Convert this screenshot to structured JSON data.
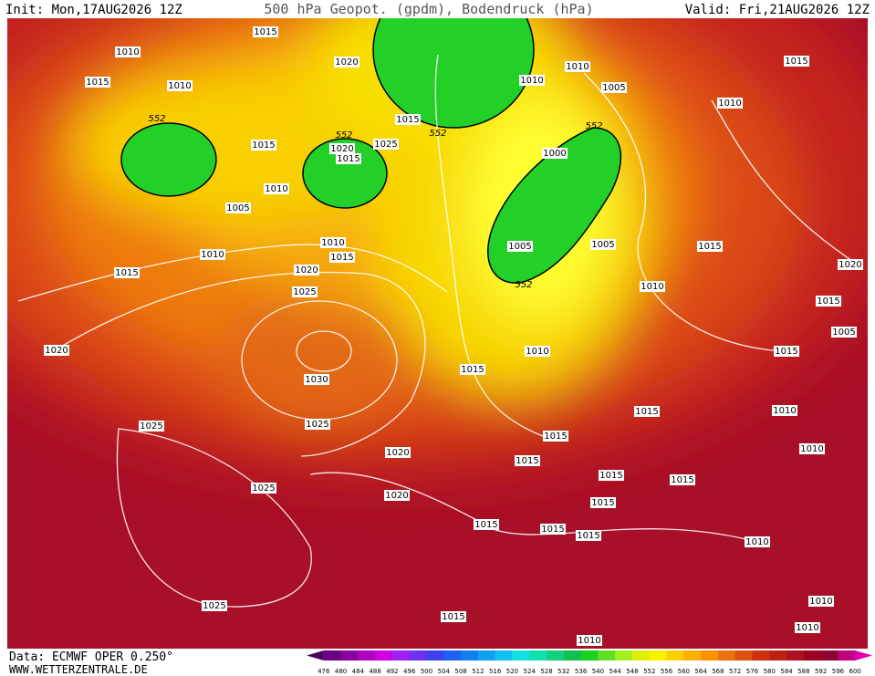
{
  "header": {
    "init": "Init: Mon,17AUG2026 12Z",
    "title": "500 hPa Geopot. (gpdm), Bodendruck (hPa)",
    "valid": "Valid: Fri,21AUG2026 12Z"
  },
  "footer": {
    "source": "Data: ECMWF OPER 0.250°",
    "site": "WWW.WETTERZENTRALE.DE"
  },
  "colorbar": {
    "labels": [
      "476",
      "480",
      "484",
      "488",
      "492",
      "496",
      "500",
      "504",
      "508",
      "512",
      "516",
      "520",
      "524",
      "528",
      "532",
      "536",
      "540",
      "544",
      "548",
      "552",
      "556",
      "560",
      "564",
      "568",
      "572",
      "576",
      "580",
      "584",
      "588",
      "592",
      "596",
      "600"
    ],
    "colors": [
      "#4a0060",
      "#6a0080",
      "#8a00a0",
      "#b000c0",
      "#d000e0",
      "#a020f0",
      "#7030f0",
      "#4040f0",
      "#2060f0",
      "#1080f0",
      "#10a0f0",
      "#10c0f0",
      "#10e0e0",
      "#10e0b0",
      "#10d080",
      "#10c050",
      "#20d020",
      "#60e020",
      "#a0f020",
      "#e0f000",
      "#fff000",
      "#ffd000",
      "#ffb000",
      "#ff9000",
      "#f07010",
      "#e05010",
      "#d03010",
      "#c02010",
      "#b01020",
      "#a00020",
      "#900030",
      "#c00080",
      "#e000b0"
    ]
  },
  "isobar_labels": [
    "1015",
    "1010",
    "1020",
    "1015",
    "1010",
    "1010",
    "1010",
    "1005",
    "1015",
    "1010",
    "552",
    "552",
    "1015",
    "552",
    "552",
    "1015",
    "1020",
    "1025",
    "1015",
    "1000",
    "1010",
    "1005",
    "1005",
    "1005",
    "1015",
    "1010",
    "1010",
    "1015",
    "1015",
    "1020",
    "1025",
    "552",
    "1010",
    "1020",
    "1015",
    "1005",
    "1020",
    "1010",
    "1015",
    "1030",
    "1015",
    "1010",
    "1015",
    "1025",
    "1025",
    "1015",
    "1010",
    "1020",
    "1015",
    "1015",
    "1015",
    "1025",
    "1020",
    "1015",
    "1015",
    "1015",
    "1015",
    "1010",
    "1025",
    "1010",
    "1015",
    "1010",
    "1010"
  ]
}
